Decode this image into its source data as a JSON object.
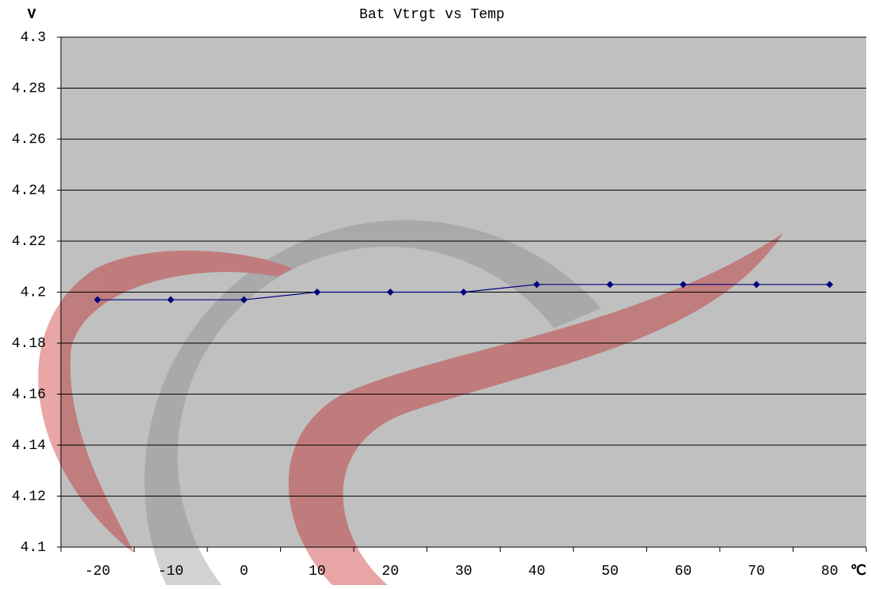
{
  "chart_data": {
    "type": "line",
    "title": "Bat Vtrgt vs Temp",
    "y_label": "V",
    "x_label": "℃",
    "categories": [
      -20,
      -10,
      0,
      10,
      20,
      30,
      40,
      50,
      60,
      70,
      80
    ],
    "values": [
      4.197,
      4.197,
      4.197,
      4.2,
      4.2,
      4.2,
      4.203,
      4.203,
      4.203,
      4.203,
      4.203
    ],
    "color": "#000080",
    "ylim": [
      4.1,
      4.3
    ],
    "yticks": [
      4.1,
      4.12,
      4.14,
      4.16,
      4.18,
      4.2,
      4.22,
      4.24,
      4.26,
      4.28,
      4.3
    ],
    "grid": true
  }
}
